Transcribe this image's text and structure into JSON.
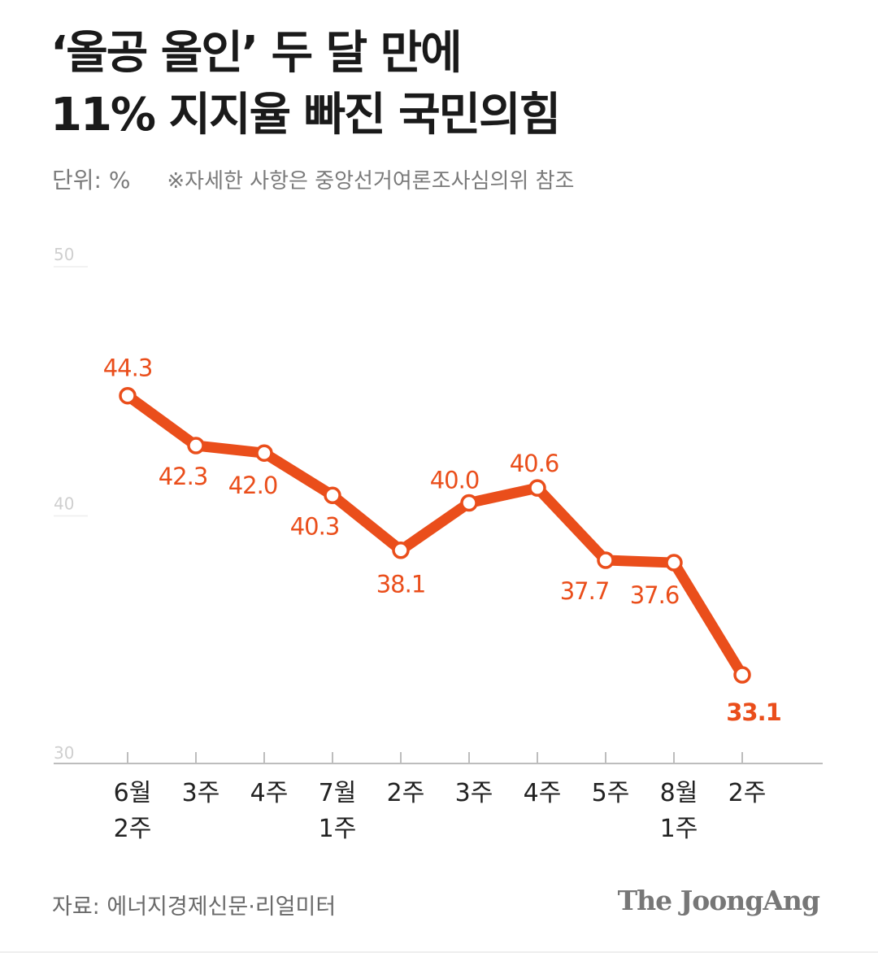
{
  "title_line1": "‘올공 올인’ 두 달 만에",
  "title_line2": "11% 지지율 빠진 국민의힘",
  "unit_label": "단위: %",
  "note": "※자세한 사항은 중앙선거여론조사심의위 참조",
  "source": "자료: 에너지경제신문·리얼미터",
  "brand": "The JoongAng",
  "colors": {
    "line": "#ea4e1b",
    "axis": "#bdbdbd",
    "grid": "#eeeeee"
  },
  "chart_data": {
    "type": "line",
    "title": "‘올공 올인’ 두 달 만에 11% 지지율 빠진 국민의힘",
    "ylabel": "",
    "ylim": [
      30,
      50
    ],
    "yticks": [
      "30",
      "40",
      "50"
    ],
    "x": [
      "6월 2주",
      "3주",
      "4주",
      "7월 1주",
      "2주",
      "3주",
      "4주",
      "5주",
      "8월 1주",
      "2주"
    ],
    "x_lines": [
      [
        "6월",
        "2주"
      ],
      [
        "3주"
      ],
      [
        "4주"
      ],
      [
        "7월",
        "1주"
      ],
      [
        "2주"
      ],
      [
        "3주"
      ],
      [
        "4주"
      ],
      [
        "5주"
      ],
      [
        "8월",
        "1주"
      ],
      [
        "2주"
      ]
    ],
    "series": [
      {
        "values": [
          44.3,
          42.3,
          42.0,
          40.3,
          38.1,
          40.0,
          40.6,
          37.7,
          37.6,
          33.1
        ]
      }
    ],
    "data_labels": [
      "44.3",
      "42.3",
      "42.0",
      "40.3",
      "38.1",
      "40.0",
      "40.6",
      "37.7",
      "37.6",
      "33.1"
    ],
    "grid": false,
    "legend": "none"
  }
}
